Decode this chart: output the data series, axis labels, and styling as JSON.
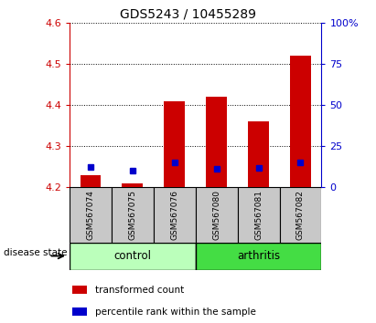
{
  "title": "GDS5243 / 10455289",
  "samples": [
    "GSM567074",
    "GSM567075",
    "GSM567076",
    "GSM567080",
    "GSM567081",
    "GSM567082"
  ],
  "group_labels": [
    "control",
    "arthritis"
  ],
  "red_values": [
    4.23,
    4.21,
    4.41,
    4.42,
    4.36,
    4.52
  ],
  "blue_values": [
    4.25,
    4.24,
    4.26,
    4.245,
    4.248,
    4.26
  ],
  "y_min": 4.2,
  "y_max": 4.6,
  "y_ticks": [
    4.2,
    4.3,
    4.4,
    4.5,
    4.6
  ],
  "right_y_ticks_pct": [
    0,
    25,
    50,
    75,
    100
  ],
  "right_y_labels": [
    "0",
    "25",
    "50",
    "75",
    "100%"
  ],
  "left_color": "#CC0000",
  "right_color": "#0000CC",
  "bar_base": 4.2,
  "red_bar_color": "#CC0000",
  "blue_marker_color": "#0000CC",
  "bg_plot": "#FFFFFF",
  "sample_box_color": "#C8C8C8",
  "legend_red_label": "transformed count",
  "legend_blue_label": "percentile rank within the sample",
  "disease_state_label": "disease state",
  "control_color": "#BBFFBB",
  "arthritis_color": "#44DD44",
  "title_fontsize": 10,
  "tick_fontsize": 8,
  "label_fontsize": 8
}
